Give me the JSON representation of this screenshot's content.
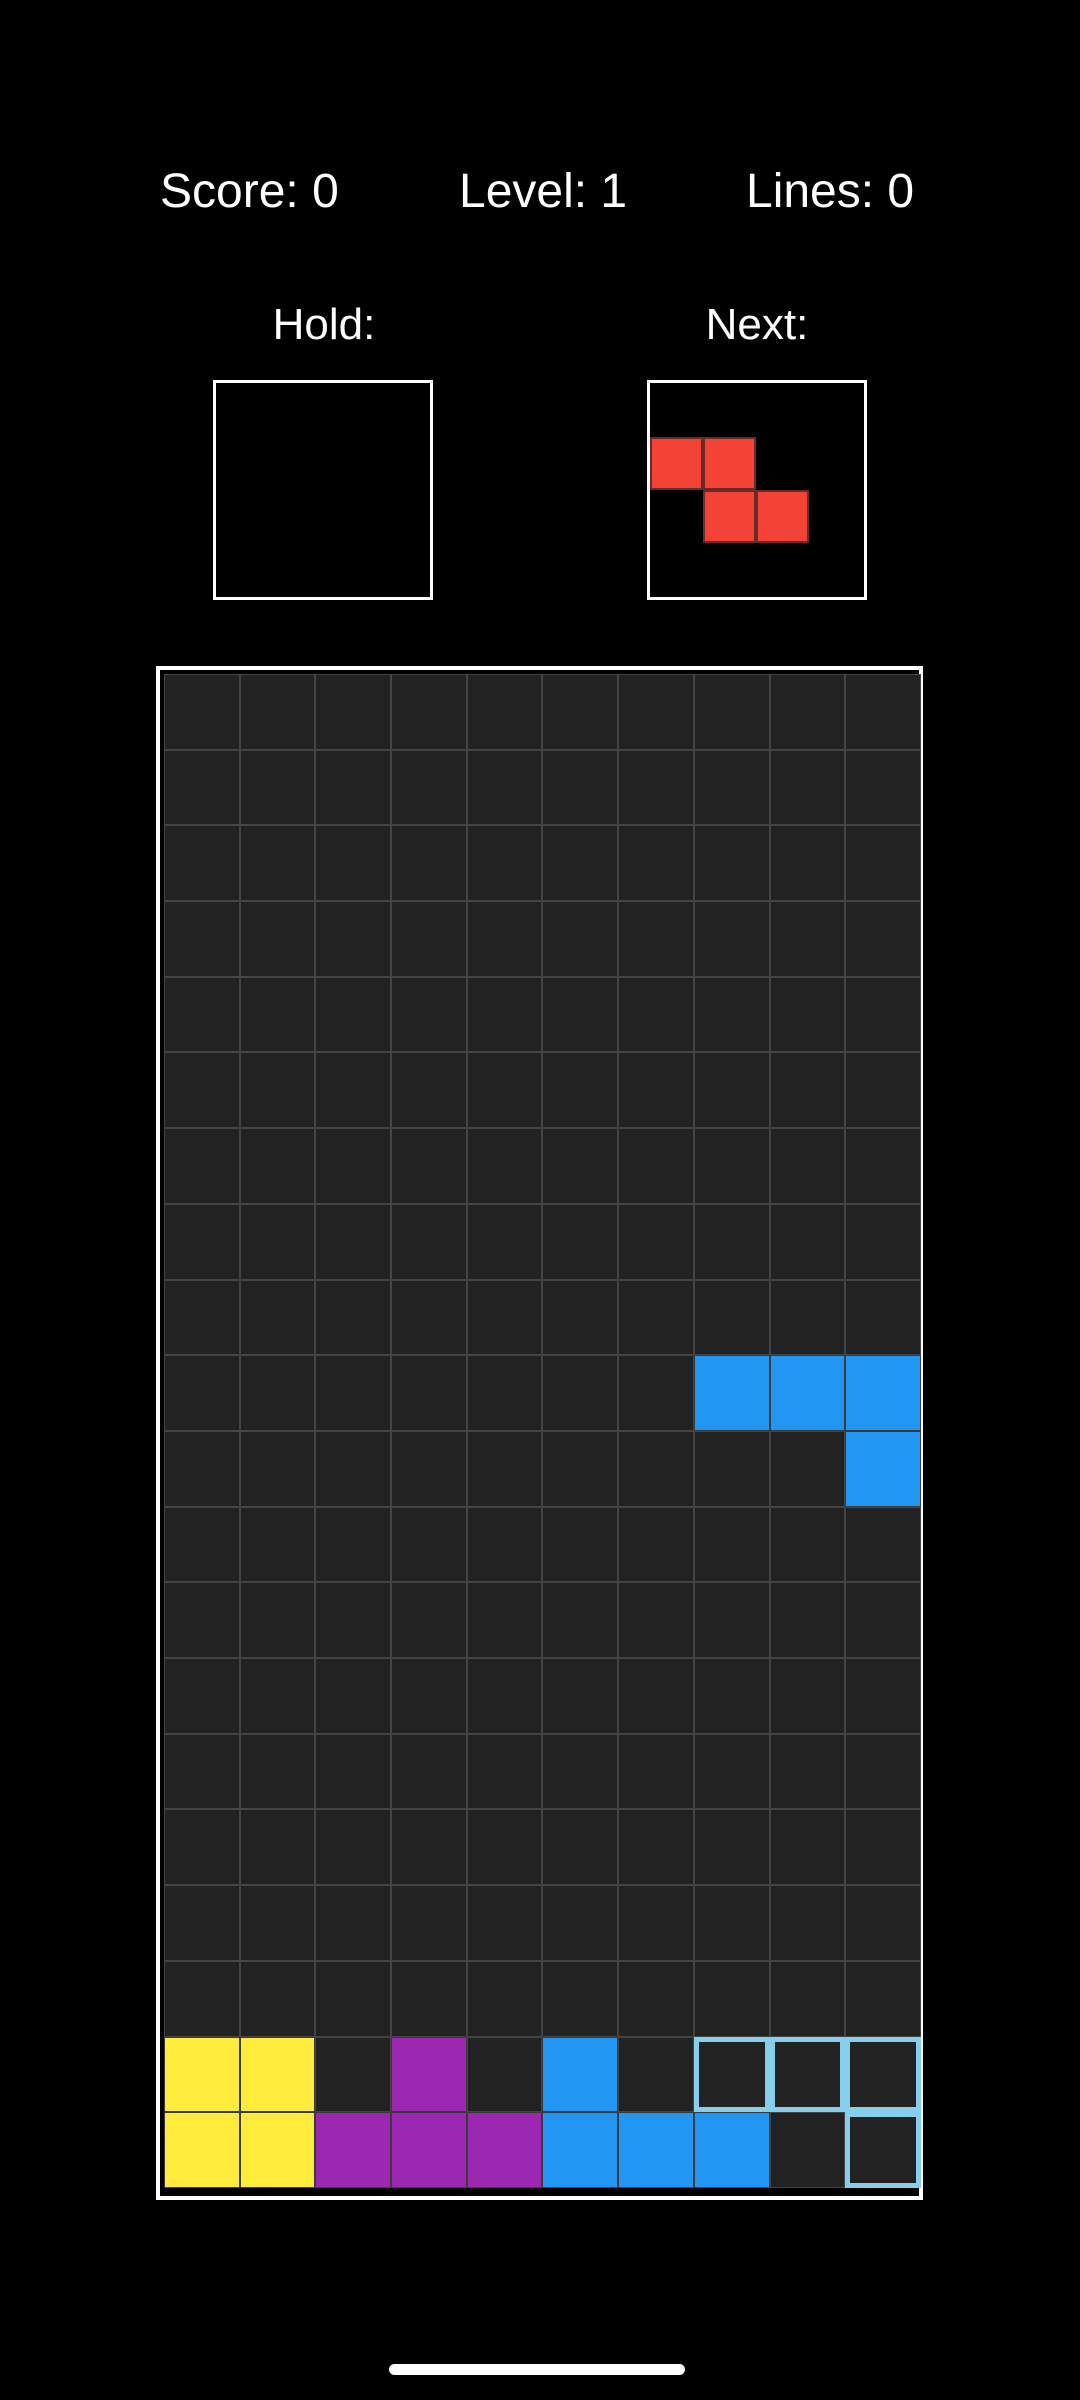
{
  "stats": {
    "score_label": "Score: 0",
    "level_label": "Level: 1",
    "lines_label": "Lines: 0",
    "score": 0,
    "level": 1,
    "lines": 0
  },
  "hold": {
    "label": "Hold:",
    "piece": null
  },
  "next": {
    "label": "Next:",
    "piece": "Z",
    "color": "#f44336",
    "cells": [
      [
        0,
        0
      ],
      [
        0,
        1
      ],
      [
        1,
        1
      ],
      [
        1,
        2
      ]
    ]
  },
  "board": {
    "cols": 10,
    "rows": 20,
    "empty_color": "#222222",
    "grid_line_color": "#444444",
    "ghost_outline_color": "#87ceeb",
    "colors": {
      "Y": "#ffeb3b",
      "P": "#9c27b0",
      "B": "#2196f3",
      "R": "#f44336"
    },
    "active_piece": {
      "type": "J",
      "color": "#2196f3",
      "cells": [
        [
          9,
          7
        ],
        [
          9,
          8
        ],
        [
          9,
          9
        ],
        [
          10,
          9
        ]
      ]
    },
    "ghost_piece": {
      "cells": [
        [
          18,
          7
        ],
        [
          18,
          8
        ],
        [
          18,
          9
        ],
        [
          19,
          9
        ]
      ]
    },
    "locked": [
      [
        18,
        0,
        "Y"
      ],
      [
        18,
        1,
        "Y"
      ],
      [
        19,
        0,
        "Y"
      ],
      [
        19,
        1,
        "Y"
      ],
      [
        18,
        3,
        "P"
      ],
      [
        19,
        2,
        "P"
      ],
      [
        19,
        3,
        "P"
      ],
      [
        19,
        4,
        "P"
      ],
      [
        18,
        5,
        "B"
      ],
      [
        19,
        5,
        "B"
      ],
      [
        19,
        6,
        "B"
      ],
      [
        19,
        7,
        "B"
      ]
    ]
  }
}
